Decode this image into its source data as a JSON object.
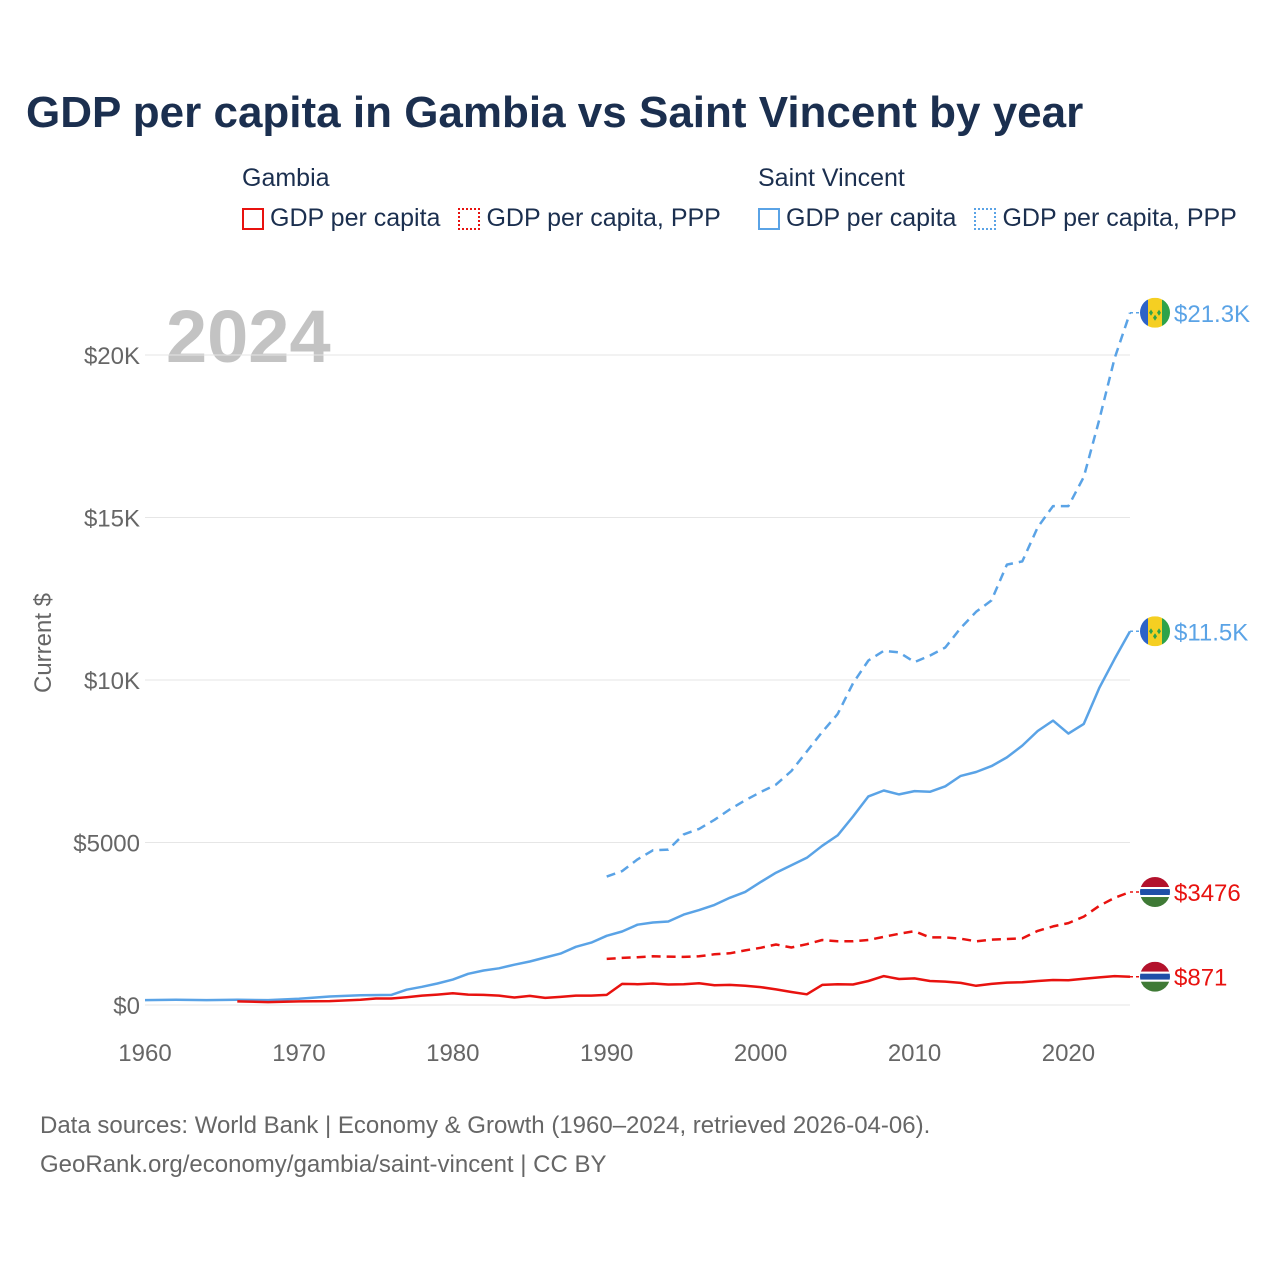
{
  "title": "GDP per capita in Gambia vs Saint Vincent by year",
  "legend": {
    "gambia": {
      "name": "Gambia",
      "items": [
        "GDP per capita",
        "GDP per capita, PPP"
      ]
    },
    "svg": {
      "name": "Saint Vincent",
      "items": [
        "GDP per capita",
        "GDP per capita, PPP"
      ]
    }
  },
  "colors": {
    "gambia": "#e8120f",
    "saint_vincent": "#5aa3e6",
    "grid": "#e6e6e6",
    "axis_text": "#666666",
    "year_watermark": "#c3c3c3"
  },
  "footer": {
    "line1": "Data sources: World Bank | Economy & Growth (1960–2024, retrieved 2026-04-06).",
    "line2": "GeoRank.org/economy/gambia/saint-vincent | CC BY"
  },
  "chart_data": {
    "type": "line",
    "title": "GDP per capita in Gambia vs Saint Vincent by year",
    "year_label": "2024",
    "ylabel": "Current $",
    "xlabel": "",
    "xlim": [
      1960,
      2024
    ],
    "ylim": [
      0,
      21300
    ],
    "x_ticks": [
      1960,
      1970,
      1980,
      1990,
      2000,
      2010,
      2020
    ],
    "y_ticks": [
      {
        "value": 0,
        "label": "$0"
      },
      {
        "value": 5000,
        "label": "$5000"
      },
      {
        "value": 10000,
        "label": "$10K"
      },
      {
        "value": 15000,
        "label": "$15K"
      },
      {
        "value": 20000,
        "label": "$20K"
      }
    ],
    "series": [
      {
        "name": "Saint Vincent GDP per capita, PPP",
        "country": "saint_vincent",
        "style": "dashed",
        "end_label": "$21.3K",
        "points": [
          [
            1990,
            3950
          ],
          [
            1991,
            4120
          ],
          [
            1992,
            4480
          ],
          [
            1993,
            4760
          ],
          [
            1994,
            4780
          ],
          [
            1995,
            5250
          ],
          [
            1996,
            5420
          ],
          [
            1997,
            5700
          ],
          [
            1998,
            6020
          ],
          [
            1999,
            6300
          ],
          [
            2000,
            6550
          ],
          [
            2001,
            6780
          ],
          [
            2002,
            7200
          ],
          [
            2003,
            7800
          ],
          [
            2004,
            8400
          ],
          [
            2005,
            8950
          ],
          [
            2006,
            9900
          ],
          [
            2007,
            10600
          ],
          [
            2008,
            10900
          ],
          [
            2009,
            10850
          ],
          [
            2010,
            10550
          ],
          [
            2011,
            10750
          ],
          [
            2012,
            11000
          ],
          [
            2013,
            11600
          ],
          [
            2014,
            12100
          ],
          [
            2015,
            12450
          ],
          [
            2016,
            13550
          ],
          [
            2017,
            13650
          ],
          [
            2018,
            14700
          ],
          [
            2019,
            15350
          ],
          [
            2020,
            15350
          ],
          [
            2021,
            16250
          ],
          [
            2022,
            18000
          ],
          [
            2023,
            19900
          ],
          [
            2024,
            21300
          ]
        ]
      },
      {
        "name": "Saint Vincent GDP per capita",
        "country": "saint_vincent",
        "style": "solid",
        "end_label": "$11.5K",
        "points": [
          [
            1960,
            150
          ],
          [
            1962,
            160
          ],
          [
            1964,
            150
          ],
          [
            1966,
            160
          ],
          [
            1968,
            150
          ],
          [
            1970,
            190
          ],
          [
            1972,
            260
          ],
          [
            1974,
            300
          ],
          [
            1976,
            310
          ],
          [
            1977,
            470
          ],
          [
            1978,
            560
          ],
          [
            1979,
            660
          ],
          [
            1980,
            780
          ],
          [
            1981,
            960
          ],
          [
            1982,
            1060
          ],
          [
            1983,
            1130
          ],
          [
            1984,
            1240
          ],
          [
            1985,
            1340
          ],
          [
            1986,
            1460
          ],
          [
            1987,
            1580
          ],
          [
            1988,
            1790
          ],
          [
            1989,
            1920
          ],
          [
            1990,
            2130
          ],
          [
            1991,
            2260
          ],
          [
            1992,
            2470
          ],
          [
            1993,
            2540
          ],
          [
            1994,
            2570
          ],
          [
            1995,
            2780
          ],
          [
            1996,
            2920
          ],
          [
            1997,
            3080
          ],
          [
            1998,
            3300
          ],
          [
            1999,
            3480
          ],
          [
            2000,
            3780
          ],
          [
            2001,
            4070
          ],
          [
            2002,
            4300
          ],
          [
            2003,
            4530
          ],
          [
            2004,
            4900
          ],
          [
            2005,
            5220
          ],
          [
            2006,
            5800
          ],
          [
            2007,
            6420
          ],
          [
            2008,
            6600
          ],
          [
            2009,
            6480
          ],
          [
            2010,
            6580
          ],
          [
            2011,
            6560
          ],
          [
            2012,
            6730
          ],
          [
            2013,
            7050
          ],
          [
            2014,
            7170
          ],
          [
            2015,
            7350
          ],
          [
            2016,
            7620
          ],
          [
            2017,
            7980
          ],
          [
            2018,
            8430
          ],
          [
            2019,
            8750
          ],
          [
            2020,
            8350
          ],
          [
            2021,
            8650
          ],
          [
            2022,
            9750
          ],
          [
            2023,
            10650
          ],
          [
            2024,
            11500
          ]
        ]
      },
      {
        "name": "Gambia GDP per capita, PPP",
        "country": "gambia",
        "style": "dashed",
        "end_label": "$3476",
        "points": [
          [
            1990,
            1420
          ],
          [
            1991,
            1450
          ],
          [
            1992,
            1470
          ],
          [
            1993,
            1500
          ],
          [
            1994,
            1490
          ],
          [
            1995,
            1480
          ],
          [
            1996,
            1500
          ],
          [
            1997,
            1560
          ],
          [
            1998,
            1590
          ],
          [
            1999,
            1680
          ],
          [
            2000,
            1760
          ],
          [
            2001,
            1860
          ],
          [
            2002,
            1770
          ],
          [
            2003,
            1870
          ],
          [
            2004,
            2000
          ],
          [
            2005,
            1960
          ],
          [
            2006,
            1960
          ],
          [
            2007,
            2000
          ],
          [
            2008,
            2100
          ],
          [
            2009,
            2190
          ],
          [
            2010,
            2270
          ],
          [
            2011,
            2080
          ],
          [
            2012,
            2080
          ],
          [
            2013,
            2040
          ],
          [
            2014,
            1960
          ],
          [
            2015,
            2010
          ],
          [
            2016,
            2030
          ],
          [
            2017,
            2050
          ],
          [
            2018,
            2280
          ],
          [
            2019,
            2420
          ],
          [
            2020,
            2520
          ],
          [
            2021,
            2720
          ],
          [
            2022,
            3050
          ],
          [
            2023,
            3300
          ],
          [
            2024,
            3476
          ]
        ]
      },
      {
        "name": "Gambia GDP per capita",
        "country": "gambia",
        "style": "solid",
        "end_label": "$871",
        "points": [
          [
            1966,
            110
          ],
          [
            1968,
            90
          ],
          [
            1970,
            110
          ],
          [
            1972,
            120
          ],
          [
            1974,
            160
          ],
          [
            1975,
            200
          ],
          [
            1976,
            200
          ],
          [
            1977,
            240
          ],
          [
            1978,
            290
          ],
          [
            1979,
            320
          ],
          [
            1980,
            360
          ],
          [
            1981,
            320
          ],
          [
            1982,
            310
          ],
          [
            1983,
            290
          ],
          [
            1984,
            230
          ],
          [
            1985,
            280
          ],
          [
            1986,
            220
          ],
          [
            1987,
            250
          ],
          [
            1988,
            290
          ],
          [
            1989,
            290
          ],
          [
            1990,
            310
          ],
          [
            1991,
            650
          ],
          [
            1992,
            640
          ],
          [
            1993,
            660
          ],
          [
            1994,
            630
          ],
          [
            1995,
            640
          ],
          [
            1996,
            670
          ],
          [
            1997,
            610
          ],
          [
            1998,
            620
          ],
          [
            1999,
            590
          ],
          [
            2000,
            550
          ],
          [
            2001,
            480
          ],
          [
            2002,
            400
          ],
          [
            2003,
            330
          ],
          [
            2004,
            620
          ],
          [
            2005,
            640
          ],
          [
            2006,
            630
          ],
          [
            2007,
            740
          ],
          [
            2008,
            890
          ],
          [
            2009,
            800
          ],
          [
            2010,
            820
          ],
          [
            2011,
            740
          ],
          [
            2012,
            720
          ],
          [
            2013,
            680
          ],
          [
            2014,
            590
          ],
          [
            2015,
            650
          ],
          [
            2016,
            690
          ],
          [
            2017,
            700
          ],
          [
            2018,
            740
          ],
          [
            2019,
            770
          ],
          [
            2020,
            760
          ],
          [
            2021,
            810
          ],
          [
            2022,
            850
          ],
          [
            2023,
            890
          ],
          [
            2024,
            871
          ]
        ]
      }
    ]
  }
}
